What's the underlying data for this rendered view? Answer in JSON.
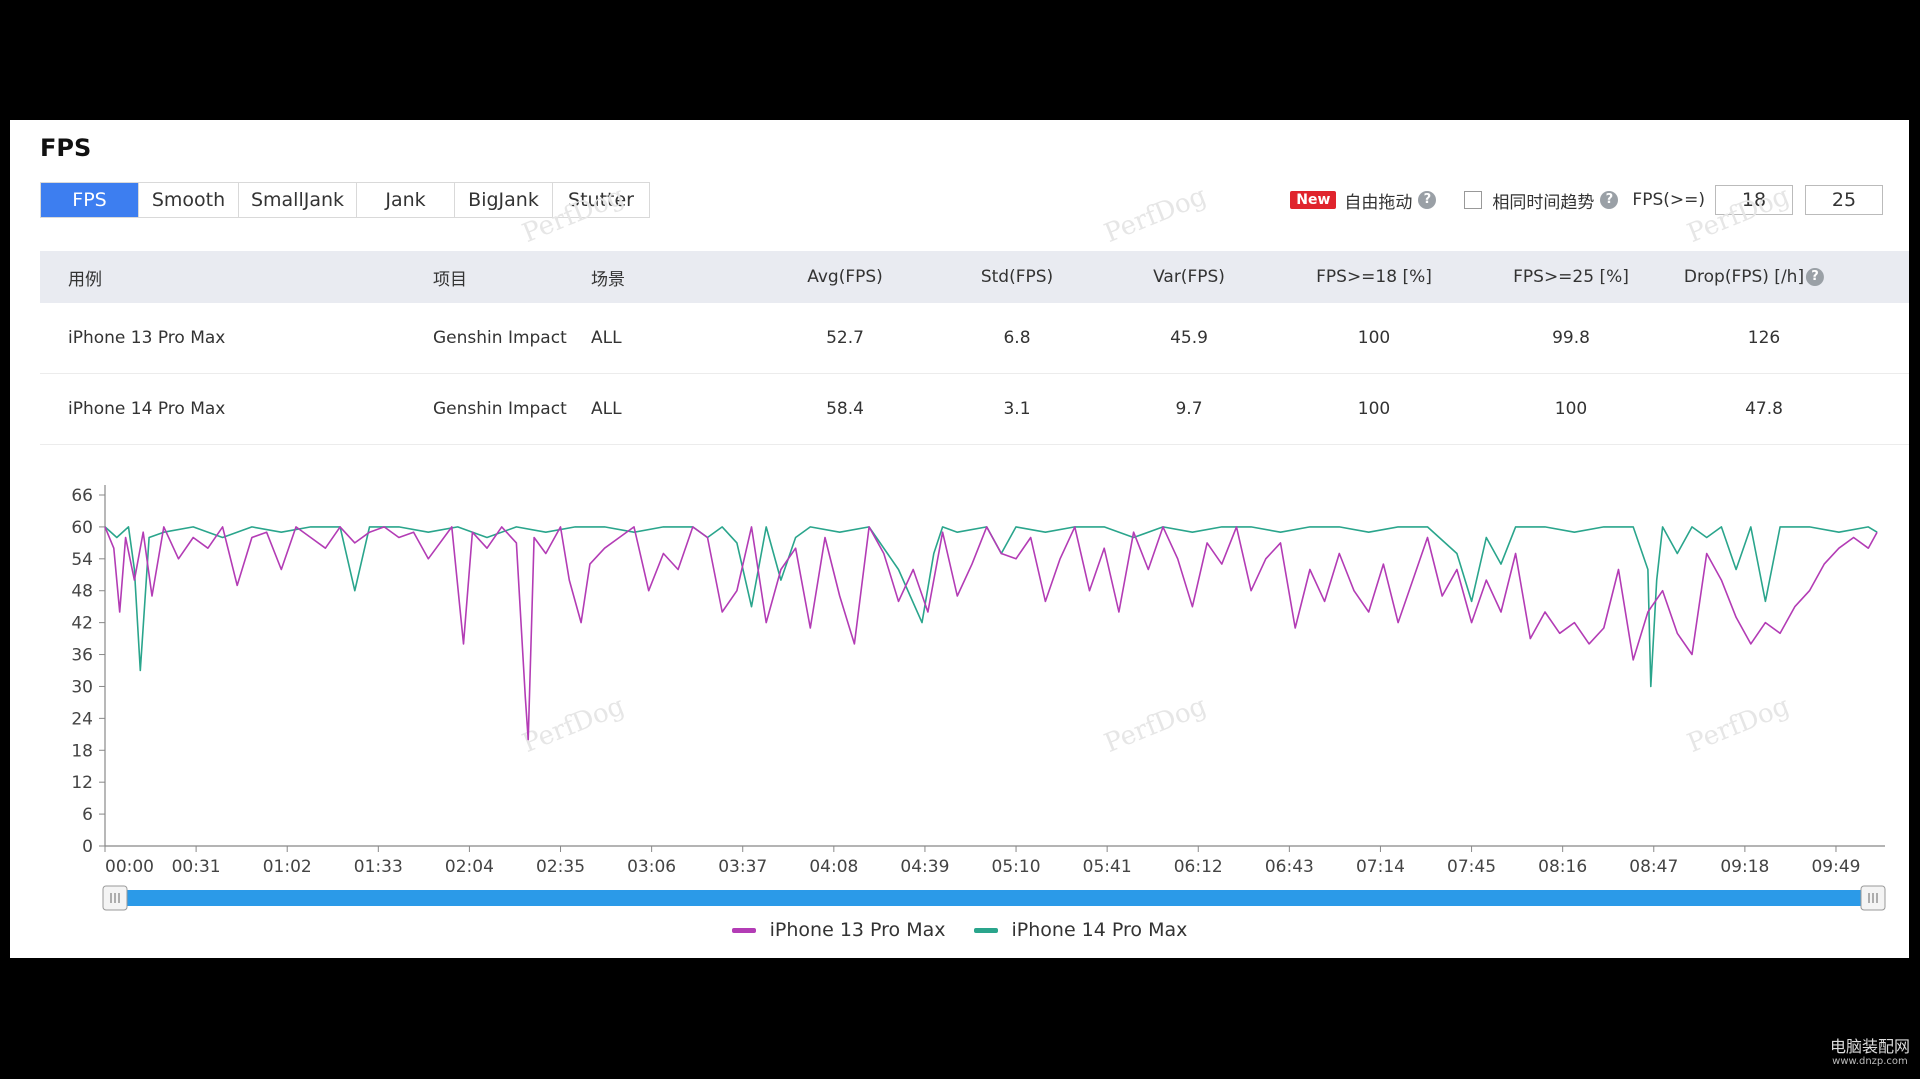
{
  "page": {
    "title": "FPS",
    "tabs": [
      "FPS",
      "Smooth",
      "SmallJank",
      "Jank",
      "BigJank",
      "Stutter"
    ],
    "active_tab": "FPS",
    "controls": {
      "new_badge": "New",
      "drag_label": "自由拖动",
      "same_time_label": "相同时间趋势",
      "fps_label": "FPS(>=)",
      "fps_threshold_1": "18",
      "fps_threshold_2": "25"
    },
    "table": {
      "headers": [
        "用例",
        "项目",
        "场景",
        "Avg(FPS)",
        "Std(FPS)",
        "Var(FPS)",
        "FPS>=18 [%]",
        "FPS>=25 [%]",
        "Drop(FPS) [/h]"
      ],
      "rows": [
        [
          "iPhone 13 Pro Max",
          "Genshin Impact",
          "ALL",
          "52.7",
          "6.8",
          "45.9",
          "100",
          "99.8",
          "126"
        ],
        [
          "iPhone 14 Pro Max",
          "Genshin Impact",
          "ALL",
          "58.4",
          "3.1",
          "9.7",
          "100",
          "100",
          "47.8"
        ]
      ]
    },
    "watermark_text": "PerfDog",
    "corner_mark": {
      "line1": "电脑装配网",
      "line2": "www.dnzp.com"
    }
  },
  "colors": {
    "accent": "#3d7ef0",
    "series_13": "#b33cb5",
    "series_14": "#2aa58c",
    "slider": "#2b9ae8"
  },
  "chart_data": {
    "type": "line",
    "title": "",
    "xlabel": "",
    "ylabel": "",
    "ylim": [
      0,
      66
    ],
    "yticks": [
      0,
      6,
      12,
      18,
      24,
      30,
      36,
      42,
      48,
      54,
      60,
      66
    ],
    "xlim_seconds": [
      0,
      605
    ],
    "xtick_labels": [
      "00:00",
      "00:31",
      "01:02",
      "01:33",
      "02:04",
      "02:35",
      "03:06",
      "03:37",
      "04:08",
      "04:39",
      "05:10",
      "05:41",
      "06:12",
      "06:43",
      "07:14",
      "07:45",
      "08:16",
      "08:47",
      "09:18",
      "09:49"
    ],
    "xtick_seconds": [
      0,
      31,
      62,
      93,
      124,
      155,
      186,
      217,
      248,
      279,
      310,
      341,
      372,
      403,
      434,
      465,
      496,
      527,
      558,
      589
    ],
    "legend_position": "bottom-center",
    "series": [
      {
        "name": "iPhone 13 Pro Max",
        "t": [
          0,
          3,
          5,
          7,
          10,
          13,
          16,
          20,
          25,
          30,
          35,
          40,
          45,
          50,
          55,
          60,
          65,
          70,
          75,
          80,
          85,
          90,
          95,
          100,
          105,
          110,
          118,
          122,
          125,
          130,
          135,
          140,
          143,
          144,
          146,
          150,
          155,
          158,
          162,
          165,
          170,
          175,
          180,
          185,
          190,
          195,
          200,
          205,
          210,
          215,
          220,
          225,
          230,
          235,
          240,
          245,
          250,
          255,
          260,
          265,
          270,
          275,
          280,
          285,
          290,
          295,
          300,
          305,
          310,
          315,
          320,
          325,
          330,
          335,
          340,
          345,
          350,
          355,
          360,
          365,
          370,
          375,
          380,
          385,
          390,
          395,
          400,
          405,
          410,
          415,
          420,
          425,
          430,
          435,
          440,
          445,
          450,
          455,
          460,
          465,
          470,
          475,
          480,
          485,
          490,
          495,
          500,
          505,
          510,
          515,
          520,
          525,
          530,
          535,
          540,
          545,
          550,
          555,
          560,
          565,
          570,
          575,
          580,
          585,
          590,
          595,
          600,
          603
        ],
        "values": [
          60,
          56,
          44,
          58,
          50,
          59,
          47,
          60,
          54,
          58,
          56,
          60,
          49,
          58,
          59,
          52,
          60,
          58,
          56,
          60,
          57,
          59,
          60,
          58,
          59,
          54,
          60,
          38,
          59,
          56,
          60,
          57,
          28,
          20,
          58,
          55,
          60,
          50,
          42,
          53,
          56,
          58,
          60,
          48,
          55,
          52,
          60,
          58,
          44,
          48,
          60,
          42,
          52,
          56,
          41,
          58,
          47,
          38,
          60,
          55,
          46,
          52,
          44,
          59,
          47,
          53,
          60,
          55,
          54,
          58,
          46,
          54,
          60,
          48,
          56,
          44,
          59,
          52,
          60,
          54,
          45,
          57,
          53,
          60,
          48,
          54,
          57,
          41,
          52,
          46,
          55,
          48,
          44,
          53,
          42,
          50,
          58,
          47,
          52,
          42,
          50,
          44,
          55,
          39,
          44,
          40,
          42,
          38,
          41,
          52,
          35,
          44,
          48,
          40,
          36,
          55,
          50,
          43,
          38,
          42,
          40,
          45,
          48,
          53,
          56,
          58,
          56,
          59
        ]
      },
      {
        "name": "iPhone 14 Pro Max",
        "t": [
          0,
          4,
          8,
          10,
          12,
          15,
          20,
          30,
          40,
          50,
          60,
          70,
          80,
          85,
          90,
          100,
          110,
          120,
          130,
          140,
          150,
          160,
          170,
          180,
          190,
          200,
          205,
          210,
          215,
          220,
          225,
          230,
          235,
          240,
          250,
          260,
          270,
          278,
          282,
          285,
          290,
          300,
          305,
          310,
          320,
          330,
          340,
          350,
          360,
          370,
          380,
          390,
          400,
          410,
          420,
          430,
          440,
          450,
          460,
          465,
          470,
          475,
          480,
          490,
          500,
          510,
          520,
          525,
          526,
          528,
          530,
          535,
          540,
          545,
          550,
          555,
          560,
          565,
          570,
          580,
          590,
          600,
          603
        ],
        "values": [
          60,
          58,
          60,
          52,
          33,
          58,
          59,
          60,
          58,
          60,
          59,
          60,
          60,
          48,
          60,
          60,
          59,
          60,
          58,
          60,
          59,
          60,
          60,
          59,
          60,
          60,
          58,
          60,
          57,
          45,
          60,
          50,
          58,
          60,
          59,
          60,
          52,
          42,
          55,
          60,
          59,
          60,
          55,
          60,
          59,
          60,
          60,
          58,
          60,
          59,
          60,
          60,
          59,
          60,
          60,
          59,
          60,
          60,
          55,
          46,
          58,
          53,
          60,
          60,
          59,
          60,
          60,
          52,
          30,
          50,
          60,
          55,
          60,
          58,
          60,
          52,
          60,
          46,
          60,
          60,
          59,
          60,
          59
        ]
      }
    ]
  }
}
